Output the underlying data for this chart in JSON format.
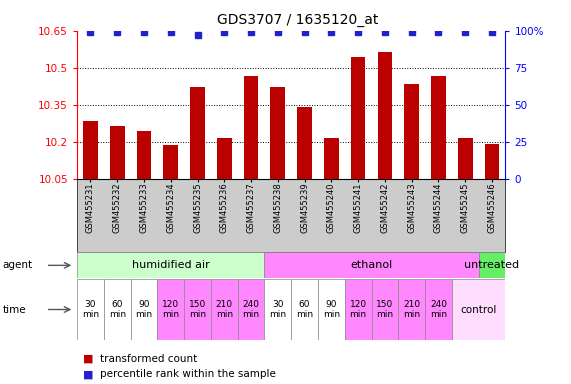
{
  "title": "GDS3707 / 1635120_at",
  "samples": [
    "GSM455231",
    "GSM455232",
    "GSM455233",
    "GSM455234",
    "GSM455235",
    "GSM455236",
    "GSM455237",
    "GSM455238",
    "GSM455239",
    "GSM455240",
    "GSM455241",
    "GSM455242",
    "GSM455243",
    "GSM455244",
    "GSM455245",
    "GSM455246"
  ],
  "bar_values": [
    10.285,
    10.265,
    10.245,
    10.185,
    10.42,
    10.215,
    10.465,
    10.42,
    10.34,
    10.215,
    10.545,
    10.565,
    10.435,
    10.465,
    10.215,
    10.19
  ],
  "percentile_values": [
    99,
    99,
    99,
    99,
    97,
    99,
    99,
    99,
    99,
    99,
    99,
    99,
    99,
    99,
    99,
    99
  ],
  "bar_color": "#bb0000",
  "percentile_color": "#2222cc",
  "ylim_left": [
    10.05,
    10.65
  ],
  "ylim_right": [
    0,
    100
  ],
  "yticks_left": [
    10.05,
    10.2,
    10.35,
    10.5,
    10.65
  ],
  "yticks_right": [
    0,
    25,
    50,
    75,
    100
  ],
  "ytick_labels_right": [
    "0",
    "25",
    "50",
    "75",
    "100%"
  ],
  "agent_groups": [
    {
      "label": "humidified air",
      "start": 0,
      "end": 7,
      "color": "#ccffcc"
    },
    {
      "label": "ethanol",
      "start": 7,
      "end": 15,
      "color": "#ff88ff"
    },
    {
      "label": "untreated",
      "start": 15,
      "end": 16,
      "color": "#66ee66"
    }
  ],
  "time_cells": [
    {
      "text": "30\nmin",
      "col": 0,
      "span": 1,
      "color": "#ffffff"
    },
    {
      "text": "60\nmin",
      "col": 1,
      "span": 1,
      "color": "#ffffff"
    },
    {
      "text": "90\nmin",
      "col": 2,
      "span": 1,
      "color": "#ffffff"
    },
    {
      "text": "120\nmin",
      "col": 3,
      "span": 1,
      "color": "#ff88ff"
    },
    {
      "text": "150\nmin",
      "col": 4,
      "span": 1,
      "color": "#ff88ff"
    },
    {
      "text": "210\nmin",
      "col": 5,
      "span": 1,
      "color": "#ff88ff"
    },
    {
      "text": "240\nmin",
      "col": 6,
      "span": 1,
      "color": "#ff88ff"
    },
    {
      "text": "30\nmin",
      "col": 7,
      "span": 1,
      "color": "#ffffff"
    },
    {
      "text": "60\nmin",
      "col": 8,
      "span": 1,
      "color": "#ffffff"
    },
    {
      "text": "90\nmin",
      "col": 9,
      "span": 1,
      "color": "#ffffff"
    },
    {
      "text": "120\nmin",
      "col": 10,
      "span": 1,
      "color": "#ff88ff"
    },
    {
      "text": "150\nmin",
      "col": 11,
      "span": 1,
      "color": "#ff88ff"
    },
    {
      "text": "210\nmin",
      "col": 12,
      "span": 1,
      "color": "#ff88ff"
    },
    {
      "text": "240\nmin",
      "col": 13,
      "span": 1,
      "color": "#ff88ff"
    },
    {
      "text": "control",
      "col": 14,
      "span": 2,
      "color": "#ffddff"
    }
  ],
  "legend_items": [
    {
      "color": "#bb0000",
      "label": "transformed count"
    },
    {
      "color": "#2222cc",
      "label": "percentile rank within the sample"
    }
  ],
  "bg_color": "#ffffff",
  "plot_bg": "#ffffff",
  "label_row_color": "#cccccc"
}
